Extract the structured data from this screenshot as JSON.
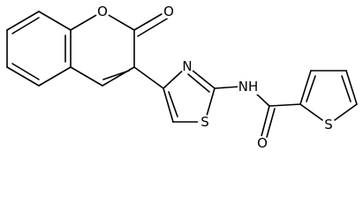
{
  "atoms": [
    "O",
    "O",
    "N",
    "NH",
    "S",
    "O",
    "S"
  ]
}
